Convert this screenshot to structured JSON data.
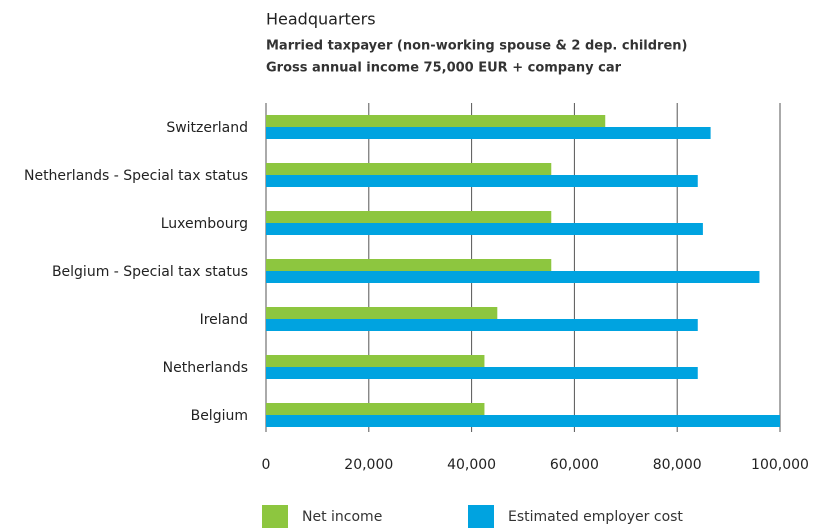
{
  "chart_data": {
    "type": "barh",
    "title": "Headquarters",
    "subtitle": [
      "Married taxpayer (non-working spouse & 2 dep. children)",
      "Gross annual income 75,000 EUR + company car"
    ],
    "categories": [
      "Switzerland",
      "Netherlands - Special tax status",
      "Luxembourg",
      "Belgium - Special tax status",
      "Ireland",
      "Netherlands",
      "Belgium"
    ],
    "series": [
      {
        "name": "Net income",
        "color": "#8dc63f",
        "values": [
          66000,
          55500,
          55500,
          55500,
          45000,
          42500,
          42500
        ]
      },
      {
        "name": "Estimated employer cost",
        "color": "#00a3e0",
        "values": [
          86500,
          84000,
          85000,
          96000,
          84000,
          84000,
          100000
        ]
      }
    ],
    "xlim": [
      0,
      100000
    ],
    "xticks": [
      0,
      {
        "value": 20000,
        "label": "20,000"
      },
      {
        "value": 40000,
        "label": "40,000"
      },
      {
        "value": 60000,
        "label": "60,000"
      },
      {
        "value": 80000,
        "label": "80,000"
      },
      {
        "value": 100000,
        "label": "100,000"
      }
    ],
    "grid": true
  }
}
